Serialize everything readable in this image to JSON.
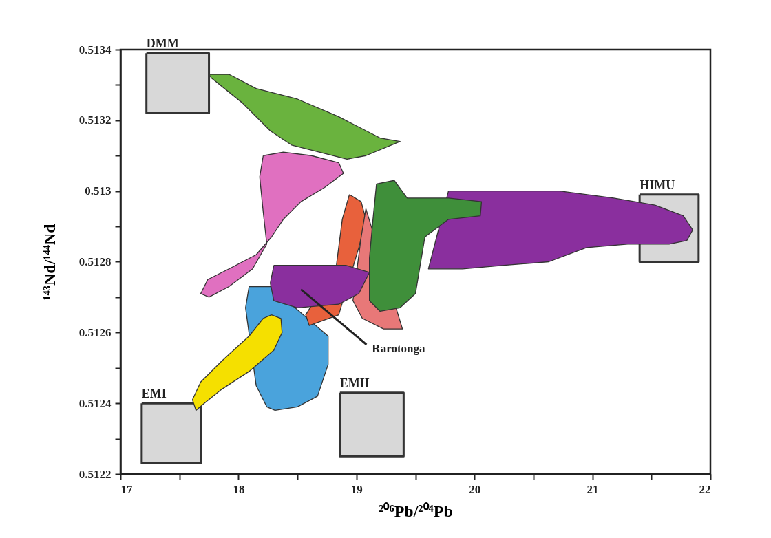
{
  "chart_data": {
    "type": "area",
    "xlabel": "²⁰⁶Pb/²⁰⁴Pb",
    "ylabel": "¹⁴³Nd/¹⁴⁴Nd",
    "xlim": [
      17,
      22
    ],
    "ylim": [
      0.5122,
      0.5134
    ],
    "xticks": [
      17,
      {
        "value": 17.5,
        "label": null
      },
      18,
      {
        "value": 18.5,
        "label": null
      },
      19,
      {
        "value": 19.5,
        "label": null
      },
      20,
      {
        "value": 20.5,
        "label": null
      },
      21,
      {
        "value": 21.5,
        "label": null
      },
      22
    ],
    "yticks": [
      0.5122,
      {
        "value": 0.5123,
        "label": null
      },
      0.5124,
      {
        "value": 0.5125,
        "label": null
      },
      0.5126,
      {
        "value": 0.5127,
        "label": null
      },
      0.5128,
      {
        "value": 0.5129,
        "label": null
      },
      0.513,
      {
        "value": 0.5131,
        "label": null
      },
      0.5132,
      {
        "value": 0.5133,
        "label": null
      },
      0.5134
    ],
    "grid": false,
    "marker": "none",
    "series": [
      {
        "name": "DMM",
        "color": "#d8d8d8",
        "x": [
          17.22,
          17.75,
          17.75,
          17.22,
          17.22
        ],
        "values": [
          0.51339,
          0.51339,
          0.51322,
          0.51322,
          0.51339
        ]
      },
      {
        "name": "EMI",
        "color": "#d8d8d8",
        "x": [
          17.18,
          17.68,
          17.68,
          17.18,
          17.18
        ],
        "values": [
          0.5124,
          0.5124,
          0.51223,
          0.51223,
          0.5124
        ]
      },
      {
        "name": "EMII",
        "color": "#d8d8d8",
        "x": [
          18.86,
          19.4,
          19.4,
          18.86,
          18.86
        ],
        "values": [
          0.51243,
          0.51243,
          0.51225,
          0.51225,
          0.51243
        ]
      },
      {
        "name": "HIMU",
        "color": "#d8d8d8",
        "x": [
          21.4,
          21.9,
          21.9,
          21.4,
          21.4
        ],
        "values": [
          0.51299,
          0.51299,
          0.5128,
          0.5128,
          0.51299
        ]
      },
      {
        "color": "#6ab33e",
        "x": [
          17.75,
          17.92,
          18.15,
          18.5,
          18.85,
          19.2,
          19.37,
          19.08,
          18.92,
          18.45,
          18.27,
          18.03,
          17.77,
          17.75
        ],
        "values": [
          0.51333,
          0.51333,
          0.51329,
          0.51326,
          0.51321,
          0.51315,
          0.51314,
          0.5131,
          0.51309,
          0.51313,
          0.51317,
          0.51325,
          0.51332,
          0.51333
        ]
      },
      {
        "color": "#e070c0",
        "x": [
          18.21,
          18.38,
          18.62,
          18.85,
          18.89,
          18.73,
          18.53,
          18.38,
          18.28,
          18.15,
          17.92,
          17.74,
          17.68,
          17.75,
          17.92,
          18.12,
          18.24,
          18.21,
          18.18,
          18.21
        ],
        "values": [
          0.5131,
          0.51311,
          0.5131,
          0.51308,
          0.51305,
          0.51301,
          0.51297,
          0.51292,
          0.51287,
          0.51282,
          0.51278,
          0.51275,
          0.51271,
          0.5127,
          0.51273,
          0.51278,
          0.51285,
          0.51294,
          0.51304,
          0.5131
        ]
      },
      {
        "color": "#4aa3dc",
        "x": [
          18.09,
          18.27,
          18.76,
          18.76,
          18.67,
          18.5,
          18.31,
          18.24,
          18.15,
          18.06,
          18.09
        ],
        "values": [
          0.51273,
          0.51273,
          0.51259,
          0.51251,
          0.51242,
          0.51239,
          0.51238,
          0.51239,
          0.51245,
          0.51267,
          0.51273
        ]
      },
      {
        "color": "#f5e000",
        "x": [
          18.28,
          18.36,
          18.37,
          18.3,
          18.09,
          17.86,
          17.71,
          17.64,
          17.61,
          17.68,
          17.86,
          18.09,
          18.21,
          18.28
        ],
        "values": [
          0.51265,
          0.51264,
          0.5126,
          0.51255,
          0.51249,
          0.51244,
          0.5124,
          0.51238,
          0.51241,
          0.51246,
          0.51252,
          0.51259,
          0.51264,
          0.51265
        ]
      },
      {
        "color": "#e8613c",
        "x": [
          18.94,
          19.04,
          19.08,
          19.02,
          18.85,
          18.6,
          18.57,
          18.83,
          18.88,
          18.94
        ],
        "values": [
          0.51299,
          0.51297,
          0.51292,
          0.51284,
          0.51265,
          0.51262,
          0.51265,
          0.51279,
          0.51292,
          0.51299
        ]
      },
      {
        "color": "#e87878",
        "x": [
          19.08,
          19.39,
          19.23,
          19.05,
          18.97,
          19.04,
          19.08
        ],
        "values": [
          0.51295,
          0.51261,
          0.51261,
          0.51264,
          0.51269,
          0.51287,
          0.51295
        ]
      },
      {
        "color": "#8a2f9e",
        "x": [
          18.3,
          18.5,
          18.91,
          19.11,
          19.02,
          18.85,
          18.5,
          18.3,
          18.27,
          18.3
        ],
        "values": [
          0.51279,
          0.51279,
          0.51279,
          0.51277,
          0.51271,
          0.51268,
          0.51267,
          0.51269,
          0.51274,
          0.51279
        ]
      },
      {
        "color": "#8a2f9e",
        "x": [
          19.78,
          20.25,
          20.72,
          21.18,
          21.53,
          21.77,
          21.85,
          21.8,
          21.65,
          21.3,
          20.95,
          20.63,
          20.25,
          19.9,
          19.61,
          19.78
        ],
        "values": [
          0.513,
          0.513,
          0.513,
          0.51298,
          0.51296,
          0.51293,
          0.51289,
          0.51286,
          0.51285,
          0.51285,
          0.51284,
          0.5128,
          0.51279,
          0.51278,
          0.51278,
          0.513
        ]
      },
      {
        "color": "#3f8f3a",
        "x": [
          19.17,
          19.32,
          19.43,
          19.78,
          20.06,
          20.05,
          19.78,
          19.58,
          19.5,
          19.37,
          19.2,
          19.11,
          19.11,
          19.14,
          19.17
        ],
        "values": [
          0.51302,
          0.51303,
          0.51298,
          0.51298,
          0.51297,
          0.51293,
          0.51292,
          0.51287,
          0.51271,
          0.51267,
          0.51266,
          0.51269,
          0.51281,
          0.51292,
          0.51302
        ]
      }
    ],
    "annotations": [
      "Rarotonga"
    ]
  }
}
